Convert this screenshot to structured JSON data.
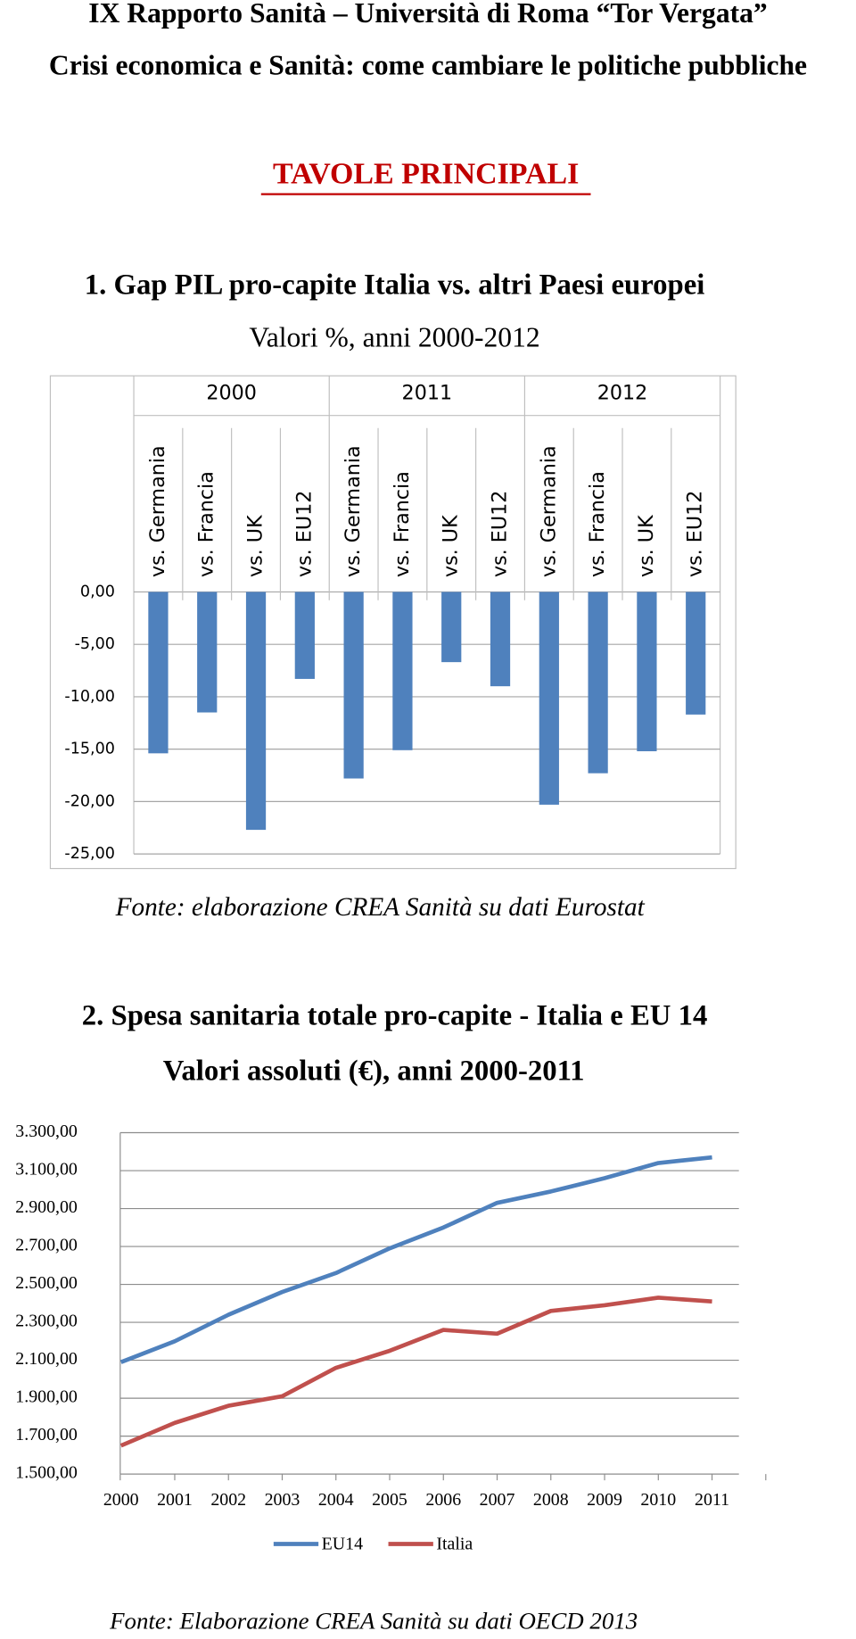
{
  "header": {
    "title": "IX Rapporto Sanità – Università di Roma “Tor Vergata”",
    "subtitle": "Crisi economica e Sanità: come cambiare le politiche pubbliche",
    "section": "TAVOLE PRINCIPALI"
  },
  "chart_data": [
    {
      "type": "bar",
      "title": "1. Gap PIL pro-capite Italia vs. altri Paesi europei",
      "subtitle": "Valori %, anni 2000-2012",
      "groups": [
        "2000",
        "2011",
        "2012"
      ],
      "categories": [
        "vs. Germania",
        "vs. Francia",
        "vs. UK",
        "vs. EU12",
        "vs. Germania",
        "vs. Francia",
        "vs. UK",
        "vs. EU12",
        "vs. Germania",
        "vs. Francia",
        "vs. UK",
        "vs. EU12"
      ],
      "values": [
        -15.4,
        -11.5,
        -22.7,
        -8.3,
        -17.8,
        -15.1,
        -6.7,
        -9.0,
        -20.3,
        -17.3,
        -15.2,
        -11.7
      ],
      "color": "#4f81bd",
      "ylim": [
        -25,
        0
      ],
      "yticks": [
        {
          "value": 0,
          "label": "0,00"
        },
        {
          "value": -5,
          "label": "-5,00"
        },
        {
          "value": -10,
          "label": "-10,00"
        },
        {
          "value": -15,
          "label": "-15,00"
        },
        {
          "value": -20,
          "label": "-20,00"
        },
        {
          "value": -25,
          "label": "-25,00"
        }
      ],
      "grid": true,
      "source": "Fonte: elaborazione CREA Sanità su dati Eurostat"
    },
    {
      "type": "line",
      "title": "2. Spesa sanitaria totale pro-capite - Italia e EU 14",
      "subtitle": "Valori assoluti (€), anni 2000-2011",
      "categories": [
        "2000",
        "2001",
        "2002",
        "2003",
        "2004",
        "2005",
        "2006",
        "2007",
        "2008",
        "2009",
        "2010",
        "2011"
      ],
      "series": [
        {
          "name": "EU14",
          "color": "#4f81bd",
          "values": [
            2090,
            2200,
            2340,
            2460,
            2560,
            2690,
            2800,
            2930,
            2990,
            3060,
            3140,
            3170
          ]
        },
        {
          "name": "Italia",
          "color": "#c0504d",
          "values": [
            1650,
            1770,
            1860,
            1910,
            2060,
            2150,
            2260,
            2240,
            2360,
            2390,
            2430,
            2410
          ]
        }
      ],
      "ylim": [
        1500,
        3300
      ],
      "yticks": [
        {
          "value": 1500,
          "label": "1.500,00"
        },
        {
          "value": 1700,
          "label": "1.700,00"
        },
        {
          "value": 1900,
          "label": "1.900,00"
        },
        {
          "value": 2100,
          "label": "2.100,00"
        },
        {
          "value": 2300,
          "label": "2.300,00"
        },
        {
          "value": 2500,
          "label": "2.500,00"
        },
        {
          "value": 2700,
          "label": "2.700,00"
        },
        {
          "value": 2900,
          "label": "2.900,00"
        },
        {
          "value": 3100,
          "label": "3.100,00"
        },
        {
          "value": 3300,
          "label": "3.300,00"
        }
      ],
      "grid": true,
      "legend": "bottom",
      "source": "Fonte: Elaborazione CREA Sanità su dati OECD 2013"
    }
  ]
}
